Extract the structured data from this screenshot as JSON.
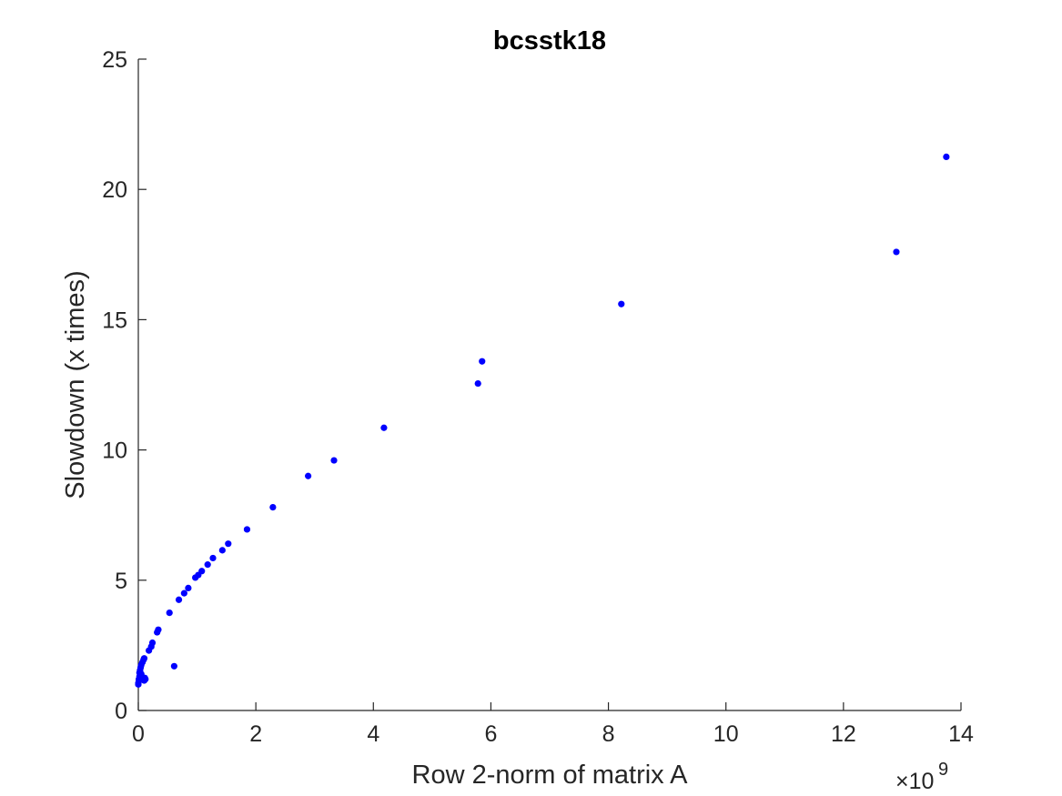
{
  "chart_data": {
    "type": "scatter",
    "title": "bcsstk18",
    "xlabel": "Row 2-norm of matrix A",
    "ylabel": "Slowdown (x times)",
    "x_exponent_label": "×10",
    "x_exponent_power": "9",
    "x_scale_factor": 1000000000.0,
    "xlim": [
      0,
      14
    ],
    "ylim": [
      0,
      25
    ],
    "xticks": [
      0,
      2,
      4,
      6,
      8,
      10,
      12,
      14
    ],
    "xtick_labels": [
      "0",
      "2",
      "4",
      "6",
      "8",
      "10",
      "12",
      "14"
    ],
    "yticks": [
      0,
      5,
      10,
      15,
      20,
      25
    ],
    "ytick_labels": [
      "0",
      "5",
      "10",
      "15",
      "20",
      "25"
    ],
    "grid": false,
    "marker_color": "#0000ff",
    "x": [
      0.0,
      0.0,
      0.01,
      0.01,
      0.02,
      0.02,
      0.03,
      0.03,
      0.04,
      0.04,
      0.05,
      0.05,
      0.06,
      0.07,
      0.08,
      0.09,
      0.1,
      0.1,
      0.11,
      0.12,
      0.18,
      0.22,
      0.24,
      0.32,
      0.34,
      0.53,
      0.61,
      0.69,
      0.78,
      0.85,
      0.97,
      1.02,
      1.08,
      1.18,
      1.27,
      1.43,
      1.53,
      1.85,
      2.29,
      2.89,
      3.33,
      4.18,
      5.78,
      5.85,
      8.22,
      12.9,
      13.75
    ],
    "y": [
      1.0,
      1.05,
      1.15,
      1.2,
      1.3,
      1.45,
      1.35,
      1.55,
      1.25,
      1.65,
      1.4,
      1.75,
      1.3,
      1.85,
      1.2,
      1.95,
      2.0,
      1.15,
      1.25,
      1.2,
      2.3,
      2.45,
      2.6,
      3.0,
      3.1,
      3.75,
      1.7,
      4.25,
      4.5,
      4.7,
      5.1,
      5.2,
      5.35,
      5.6,
      5.85,
      6.15,
      6.4,
      6.95,
      7.8,
      9.0,
      9.6,
      10.85,
      12.55,
      13.4,
      15.6,
      17.6,
      21.25
    ]
  }
}
